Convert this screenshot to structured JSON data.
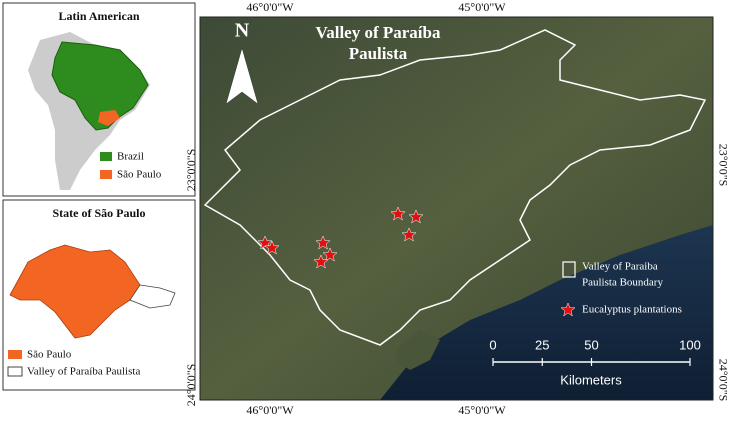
{
  "inset_latin_america": {
    "title": "Latin American",
    "legend": [
      "Brazil",
      "São Paulo"
    ]
  },
  "inset_sao_paulo": {
    "title": "State of São Paulo",
    "legend": [
      "São Paulo",
      "Valley of Paraíba Paulista"
    ]
  },
  "main_map": {
    "title_lines": [
      "Valley of Paraíba",
      "Paulista"
    ],
    "north_label": "N",
    "legend": {
      "boundary_lines": [
        "Valley of Paraiba",
        "Paulista  Boundary"
      ],
      "plantations": "Eucalyptus plantations"
    }
  },
  "scale_bar": {
    "ticks": [
      0,
      25,
      50,
      100
    ],
    "unit": "Kilometers"
  },
  "coordinates": {
    "top": [
      "46°0'0\"W",
      "45°0'0\"W"
    ],
    "bottom": [
      "46°0'0\"W",
      "45°0'0\"W"
    ],
    "left": [
      "23°0'0\"S",
      "24°0'0\"S"
    ],
    "right": [
      "23°0'0\"S",
      "24°0'0\"S"
    ]
  }
}
